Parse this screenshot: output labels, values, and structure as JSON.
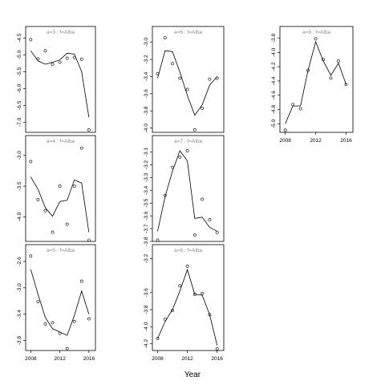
{
  "chart_data": {
    "type": "scatter",
    "xlabel": "Year",
    "panels": [
      {
        "title": "a=3 : f=Alba",
        "yticks": [
          "-4.5",
          "-5.0",
          "-5.5",
          "-6.0",
          "-6.5",
          "-7.0"
        ],
        "ylim": [
          -7.3,
          -4.42
        ],
        "xticks": [],
        "points": [
          [
            2008,
            -4.55
          ],
          [
            2009,
            -5.12
          ],
          [
            2010,
            -4.88
          ],
          [
            2011,
            -5.28
          ],
          [
            2012,
            -5.22
          ],
          [
            2013,
            -5.1
          ],
          [
            2014,
            -5.08
          ],
          [
            2015,
            -5.13
          ],
          [
            2016,
            -7.23
          ]
        ],
        "line": [
          [
            2008,
            -4.88
          ],
          [
            2009,
            -5.18
          ],
          [
            2010,
            -5.28
          ],
          [
            2011,
            -5.22
          ],
          [
            2012,
            -5.15
          ],
          [
            2013,
            -4.95
          ],
          [
            2014,
            -4.98
          ],
          [
            2015,
            -5.5
          ],
          [
            2016,
            -6.85
          ]
        ]
      },
      {
        "title": "a=6 : f=Alba",
        "yticks": [
          "-3.0",
          "-3.2",
          "-3.4",
          "-3.6",
          "-3.8",
          "-4.0"
        ],
        "ylim": [
          -4.05,
          -2.92
        ],
        "xticks": [],
        "points": [
          [
            2008,
            -3.37
          ],
          [
            2009,
            -2.95
          ],
          [
            2010,
            -3.25
          ],
          [
            2011,
            -3.42
          ],
          [
            2012,
            -3.55
          ],
          [
            2013,
            -4.02
          ],
          [
            2014,
            -3.77
          ],
          [
            2015,
            -3.43
          ],
          [
            2016,
            -3.42
          ]
        ],
        "line": [
          [
            2008,
            -3.42
          ],
          [
            2009,
            -3.1
          ],
          [
            2010,
            -3.11
          ],
          [
            2011,
            -3.35
          ],
          [
            2012,
            -3.62
          ],
          [
            2013,
            -3.85
          ],
          [
            2014,
            -3.73
          ],
          [
            2015,
            -3.5
          ],
          [
            2016,
            -3.4
          ]
        ]
      },
      {
        "title": "a=9 : f=Alba",
        "yticks": [
          "-3.8",
          "-4.0",
          "-4.2",
          "-4.4",
          "-4.6",
          "-4.8",
          "-5.0"
        ],
        "ylim": [
          -5.12,
          -3.76
        ],
        "xticks": [
          "2008",
          "2012",
          "2016"
        ],
        "points": [
          [
            2008,
            -5.09
          ],
          [
            2009,
            -4.73
          ],
          [
            2010,
            -4.79
          ],
          [
            2011,
            -4.25
          ],
          [
            2012,
            -3.81
          ],
          [
            2013,
            -4.1
          ],
          [
            2014,
            -4.36
          ],
          [
            2015,
            -4.12
          ],
          [
            2016,
            -4.45
          ]
        ],
        "line": [
          [
            2008,
            -5.0
          ],
          [
            2009,
            -4.75
          ],
          [
            2010,
            -4.75
          ],
          [
            2011,
            -4.25
          ],
          [
            2012,
            -3.85
          ],
          [
            2013,
            -4.12
          ],
          [
            2014,
            -4.32
          ],
          [
            2015,
            -4.15
          ],
          [
            2016,
            -4.45
          ]
        ]
      },
      {
        "title": "a=4 : f=Alba",
        "yticks": [
          "-3.0",
          "-3.5",
          "-4.0"
        ],
        "ylim": [
          -4.4,
          -2.82
        ],
        "xticks": [],
        "points": [
          [
            2008,
            -3.1
          ],
          [
            2009,
            -3.72
          ],
          [
            2010,
            -3.9
          ],
          [
            2011,
            -4.25
          ],
          [
            2012,
            -3.5
          ],
          [
            2013,
            -4.12
          ],
          [
            2014,
            -3.5
          ],
          [
            2015,
            -2.88
          ],
          [
            2016,
            -4.38
          ]
        ],
        "line": [
          [
            2008,
            -3.35
          ],
          [
            2009,
            -3.55
          ],
          [
            2010,
            -3.85
          ],
          [
            2011,
            -3.99
          ],
          [
            2012,
            -3.75
          ],
          [
            2013,
            -3.73
          ],
          [
            2014,
            -3.4
          ],
          [
            2015,
            -3.45
          ],
          [
            2016,
            -4.25
          ]
        ]
      },
      {
        "title": "a=7 : f=Alba",
        "yticks": [
          "-3.1",
          "-3.2",
          "-3.3",
          "-3.4",
          "-3.5",
          "-3.6",
          "-3.7",
          "-3.8"
        ],
        "ylim": [
          -3.8,
          -3.04
        ],
        "xticks": [],
        "points": [
          [
            2008,
            -3.79
          ],
          [
            2009,
            -3.44
          ],
          [
            2010,
            -3.22
          ],
          [
            2011,
            -3.14
          ],
          [
            2012,
            -3.09
          ],
          [
            2013,
            -3.75
          ],
          [
            2014,
            -3.47
          ],
          [
            2015,
            -3.63
          ],
          [
            2016,
            -3.73
          ]
        ],
        "line": [
          [
            2008,
            -3.72
          ],
          [
            2009,
            -3.45
          ],
          [
            2010,
            -3.25
          ],
          [
            2011,
            -3.09
          ],
          [
            2012,
            -3.17
          ],
          [
            2013,
            -3.62
          ],
          [
            2014,
            -3.61
          ],
          [
            2015,
            -3.69
          ],
          [
            2016,
            -3.72
          ]
        ]
      },
      {
        "title": "a=5 : f=Alba",
        "yticks": [
          "-2.6",
          "-3.0",
          "-3.4",
          "-3.8"
        ],
        "ylim": [
          -3.95,
          -2.48
        ],
        "xticks": [
          "2008",
          "2012",
          "2016"
        ],
        "points": [
          [
            2008,
            -2.52
          ],
          [
            2009,
            -3.21
          ],
          [
            2010,
            -3.55
          ],
          [
            2011,
            -3.53
          ],
          [
            2012,
            -3.69
          ],
          [
            2013,
            -3.92
          ],
          [
            2014,
            -3.51
          ],
          [
            2015,
            -2.9
          ],
          [
            2016,
            -3.47
          ]
        ],
        "line": [
          [
            2008,
            -2.72
          ],
          [
            2009,
            -3.1
          ],
          [
            2010,
            -3.45
          ],
          [
            2011,
            -3.62
          ],
          [
            2012,
            -3.67
          ],
          [
            2013,
            -3.72
          ],
          [
            2014,
            -3.42
          ],
          [
            2015,
            -3.05
          ],
          [
            2016,
            -3.4
          ]
        ]
      },
      {
        "title": "a=8 : f=Alba",
        "yticks": [
          "-3.2",
          "-3.6",
          "-3.8",
          "-4.0",
          "-4.2"
        ],
        "ylim": [
          -4.28,
          -3.14
        ],
        "xticks": [
          "2008",
          "2012",
          "2016"
        ],
        "points": [
          [
            2008,
            -4.14
          ],
          [
            2009,
            -3.91
          ],
          [
            2010,
            -3.81
          ],
          [
            2011,
            -3.52
          ],
          [
            2012,
            -3.29
          ],
          [
            2013,
            -3.62
          ],
          [
            2014,
            -3.61
          ],
          [
            2015,
            -3.86
          ],
          [
            2016,
            -4.26
          ]
        ],
        "line": [
          [
            2008,
            -4.14
          ],
          [
            2009,
            -3.94
          ],
          [
            2010,
            -3.8
          ],
          [
            2011,
            -3.58
          ],
          [
            2012,
            -3.33
          ],
          [
            2013,
            -3.62
          ],
          [
            2014,
            -3.63
          ],
          [
            2015,
            -3.86
          ],
          [
            2016,
            -4.22
          ]
        ]
      }
    ]
  }
}
